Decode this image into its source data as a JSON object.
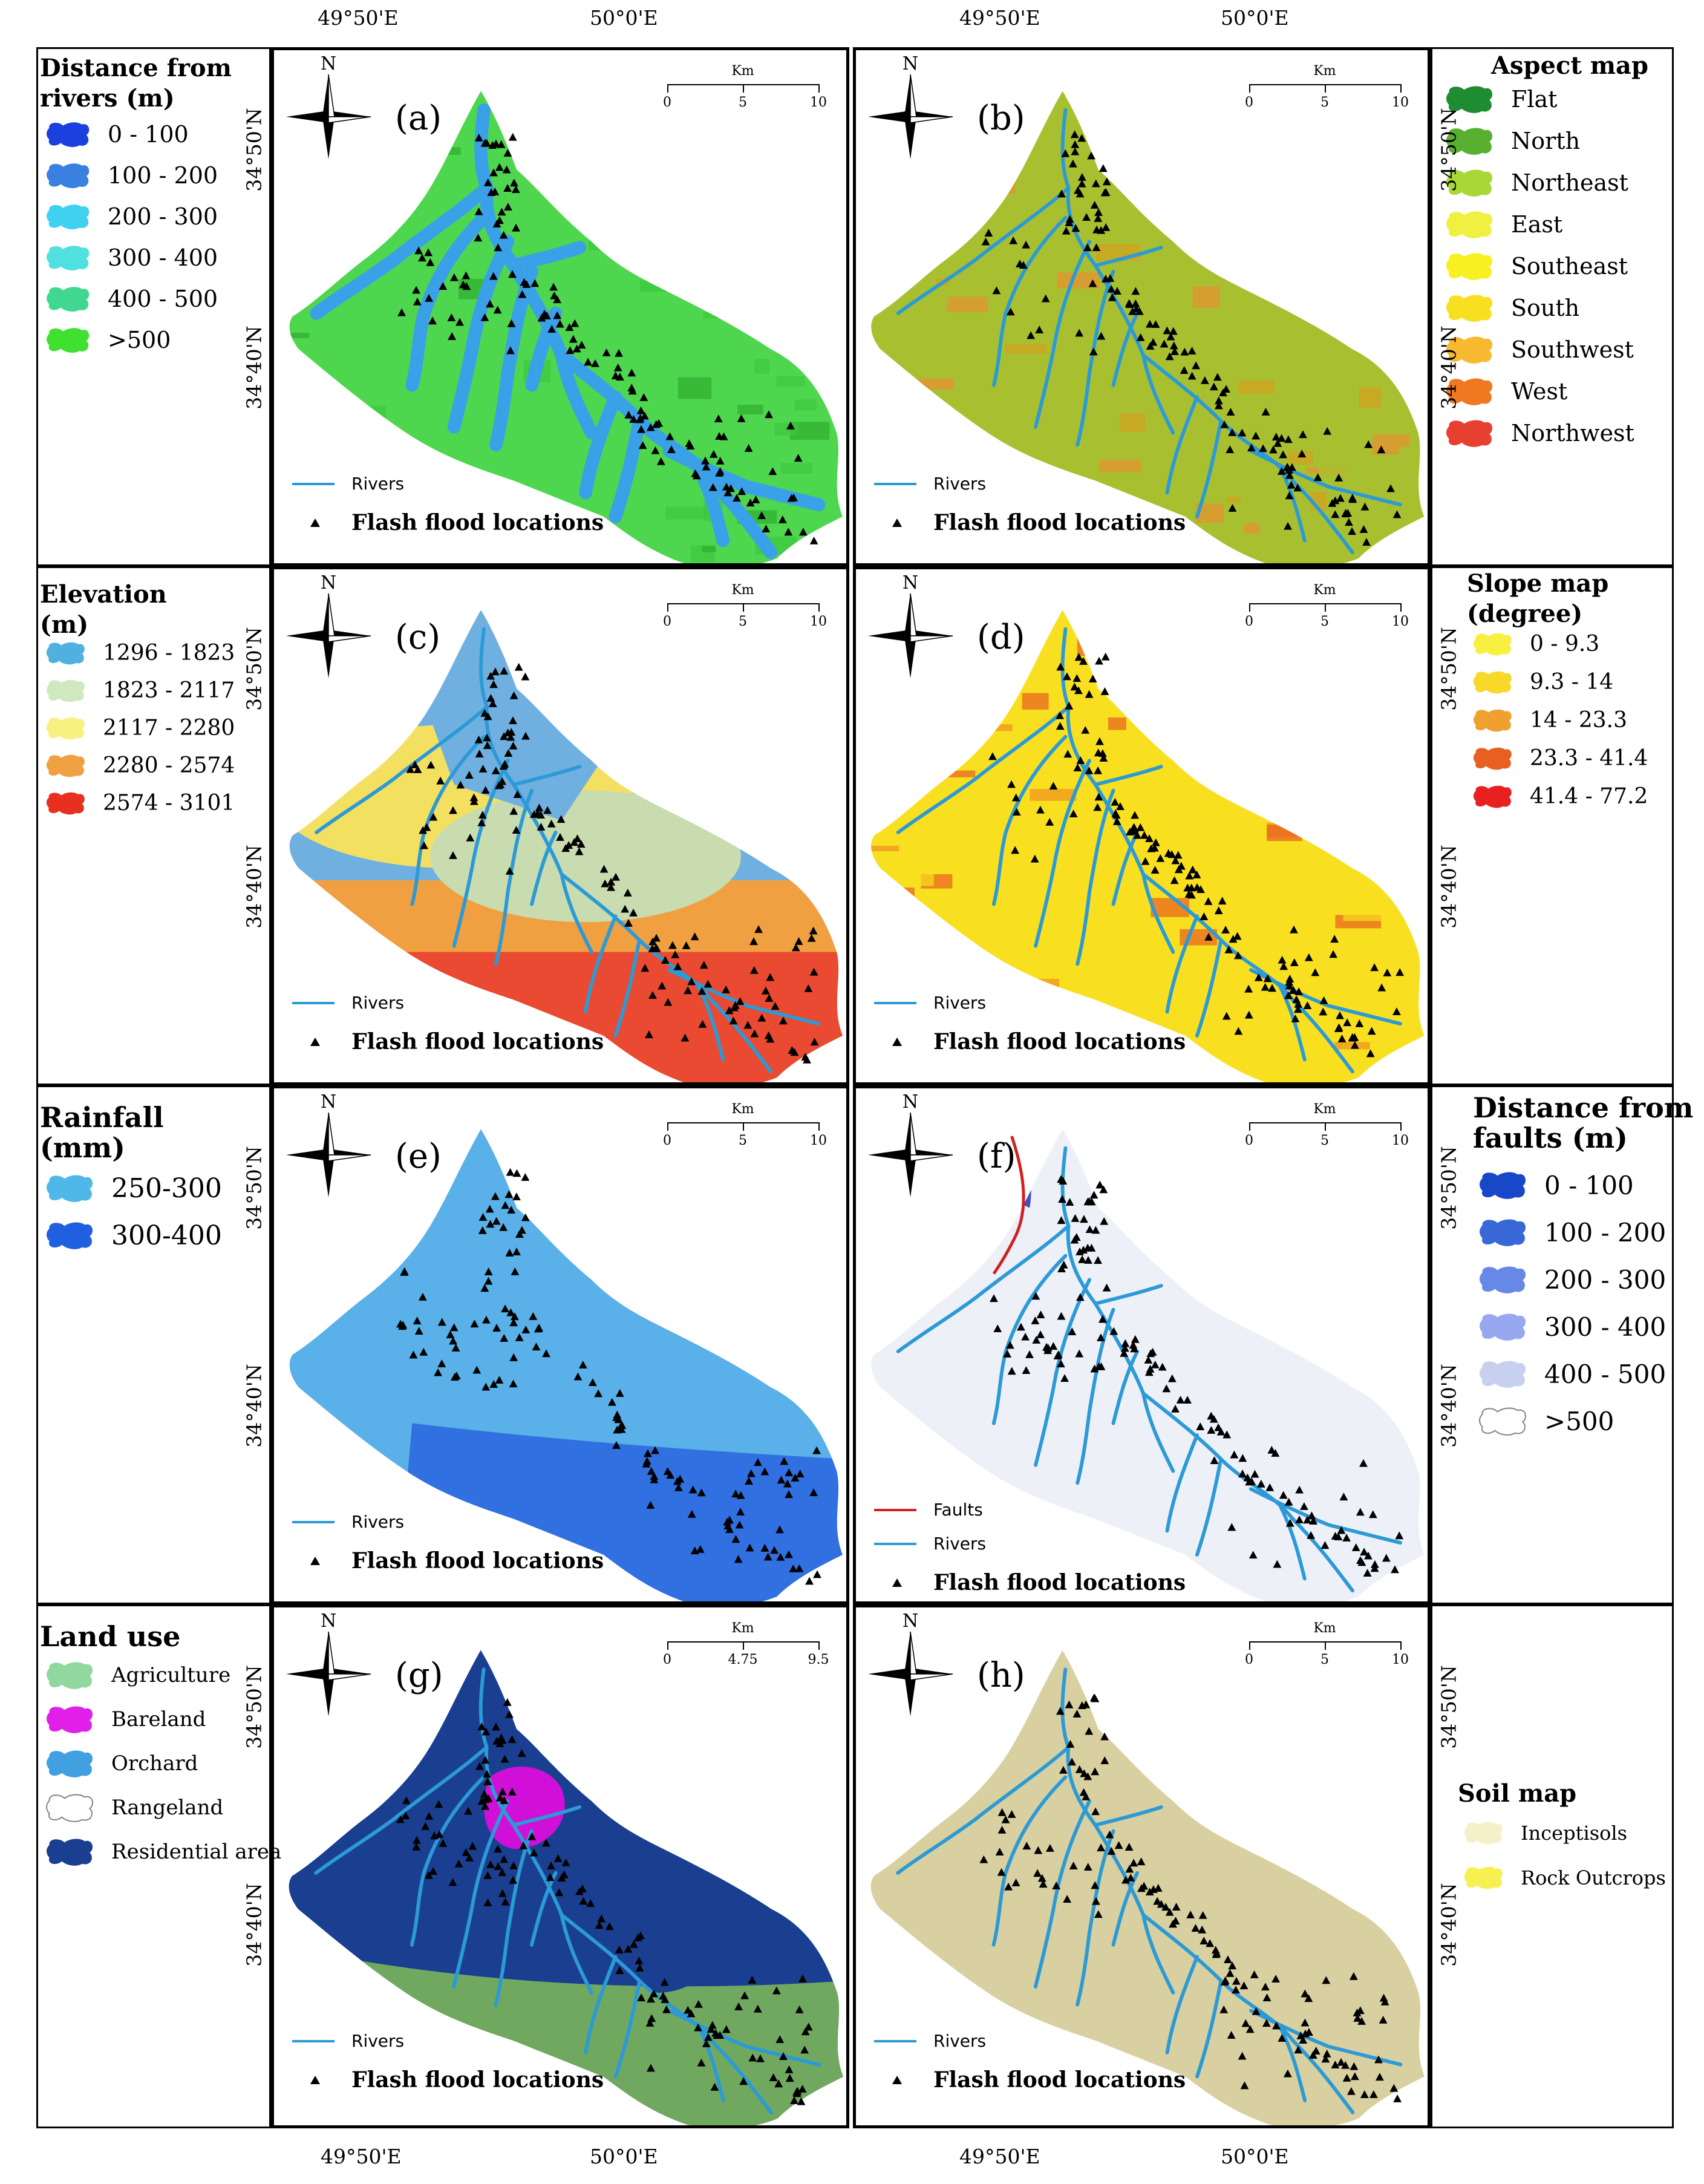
{
  "coords": {
    "top": [
      "49°50'E",
      "50°0'E",
      "49°50'E",
      "50°0'E"
    ],
    "bottom": [
      "49°50'E",
      "50°0'E",
      "49°50'E",
      "50°0'E"
    ],
    "n50": "34°50'N",
    "n40": "34°40'N"
  },
  "compass_n": "N",
  "rivers_label": "Rivers",
  "faults_label": "Faults",
  "flood_label": "Flash flood locations",
  "scale": {
    "unit": "Km",
    "ticks": [
      "0",
      "5",
      "10"
    ],
    "ticks_g": [
      "0",
      "4.75",
      "9.5"
    ]
  },
  "panels": [
    {
      "id": "a",
      "label": "(a)",
      "basin_colors": [
        "#3cc83c",
        "#2fae2f",
        "#4fd64f"
      ],
      "river_color": "#3aa0e8",
      "river_width": 22
    },
    {
      "id": "b",
      "label": "(b)",
      "basin_colors": [
        "#d4a020",
        "#e89030",
        "#a8c030"
      ],
      "river_color": "#2b9ad6",
      "river_width": 6
    },
    {
      "id": "c",
      "label": "(c)",
      "basin_colors": [
        "#e84030",
        "#f0a040",
        "#f4e060",
        "#c8dcb0",
        "#70b0e0"
      ],
      "river_color": "#2b9ad6",
      "river_width": 6
    },
    {
      "id": "d",
      "label": "(d)",
      "basin_colors": [
        "#e86020",
        "#f09020",
        "#f8e020"
      ],
      "river_color": "#2b9ad6",
      "river_width": 6
    },
    {
      "id": "e",
      "label": "(e)",
      "basin_colors": [
        "#3070e0",
        "#5ab0e8"
      ],
      "river_color": "#70b8e8",
      "river_width": 0
    },
    {
      "id": "f",
      "label": "(f)",
      "basin_colors": [
        "#dcdff0",
        "#eef0f8"
      ],
      "river_color": "#2b9ad6",
      "river_width": 6
    },
    {
      "id": "g",
      "label": "(g)",
      "basin_colors": [
        "#70a860",
        "#f0ecc8",
        "#d010d8",
        "#1a3f90"
      ],
      "river_color": "#2b9ad6",
      "river_width": 6
    },
    {
      "id": "h",
      "label": "(h)",
      "basin_colors": [
        "#f4ec10",
        "#d8d0a0"
      ],
      "river_color": "#2b9ad6",
      "river_width": 6
    }
  ],
  "legends": {
    "a": {
      "title": "Distance from\nrivers (m)",
      "items": [
        {
          "label": "0 - 100",
          "color": "#1a40e0"
        },
        {
          "label": "100 - 200",
          "color": "#3a80e0"
        },
        {
          "label": "200 - 300",
          "color": "#40d0f0"
        },
        {
          "label": "300 - 400",
          "color": "#50e0e0"
        },
        {
          "label": "400 - 500",
          "color": "#40d890"
        },
        {
          "label": ">500",
          "color": "#40e030"
        }
      ]
    },
    "b": {
      "title": "Aspect map",
      "items": [
        {
          "label": "Flat",
          "color": "#1e8c30"
        },
        {
          "label": "North",
          "color": "#58b030"
        },
        {
          "label": "Northeast",
          "color": "#a8d838"
        },
        {
          "label": "East",
          "color": "#f0f040"
        },
        {
          "label": "Southeast",
          "color": "#f8f020"
        },
        {
          "label": "South",
          "color": "#f8e020"
        },
        {
          "label": "Southwest",
          "color": "#f8b830"
        },
        {
          "label": "West",
          "color": "#f07820"
        },
        {
          "label": "Northwest",
          "color": "#e84030"
        }
      ]
    },
    "c": {
      "title": "Elevation\n(m)",
      "items": [
        {
          "label": "1296 - 1823",
          "color": "#50b0e0"
        },
        {
          "label": "1823 - 2117",
          "color": "#d0e8c0"
        },
        {
          "label": "2117 - 2280",
          "color": "#f8f080"
        },
        {
          "label": "2280 - 2574",
          "color": "#f0a040"
        },
        {
          "label": "2574 - 3101",
          "color": "#e83020"
        }
      ]
    },
    "d": {
      "title": "Slope map\n(degree)",
      "items": [
        {
          "label": "0 - 9.3",
          "color": "#f8f040"
        },
        {
          "label": "9.3 - 14",
          "color": "#f8d828"
        },
        {
          "label": "14 - 23.3",
          "color": "#f0a030"
        },
        {
          "label": "23.3 - 41.4",
          "color": "#e86020"
        },
        {
          "label": "41.4 - 77.2",
          "color": "#e82020"
        }
      ]
    },
    "e": {
      "title": "Rainfall\n(mm)",
      "items": [
        {
          "label": "250-300",
          "color": "#50b8e8"
        },
        {
          "label": "300-400",
          "color": "#2060e0"
        }
      ]
    },
    "f": {
      "title": "Distance from\nfaults (m)",
      "items": [
        {
          "label": "0 - 100",
          "color": "#1848c8"
        },
        {
          "label": "100 - 200",
          "color": "#3868d8"
        },
        {
          "label": "200 - 300",
          "color": "#6888e8"
        },
        {
          "label": "300 - 400",
          "color": "#98a8f0"
        },
        {
          "label": "400 - 500",
          "color": "#c8d0f0"
        },
        {
          "label": ">500",
          "color": "#ffffff"
        }
      ]
    },
    "g": {
      "title": "Land use",
      "items": [
        {
          "label": "Agriculture",
          "color": "#90d8a0"
        },
        {
          "label": "Bareland",
          "color": "#e020e8"
        },
        {
          "label": "Orchard",
          "color": "#40a0e0"
        },
        {
          "label": "Rangeland",
          "color": "#ffffff"
        },
        {
          "label": "Residential area",
          "color": "#1a3f90"
        }
      ]
    },
    "h": {
      "title": "Soil map",
      "items": [
        {
          "label": "Inceptisols",
          "color": "#f4f0c8"
        },
        {
          "label": "Rock Outcrops",
          "color": "#f8f050"
        }
      ]
    }
  }
}
